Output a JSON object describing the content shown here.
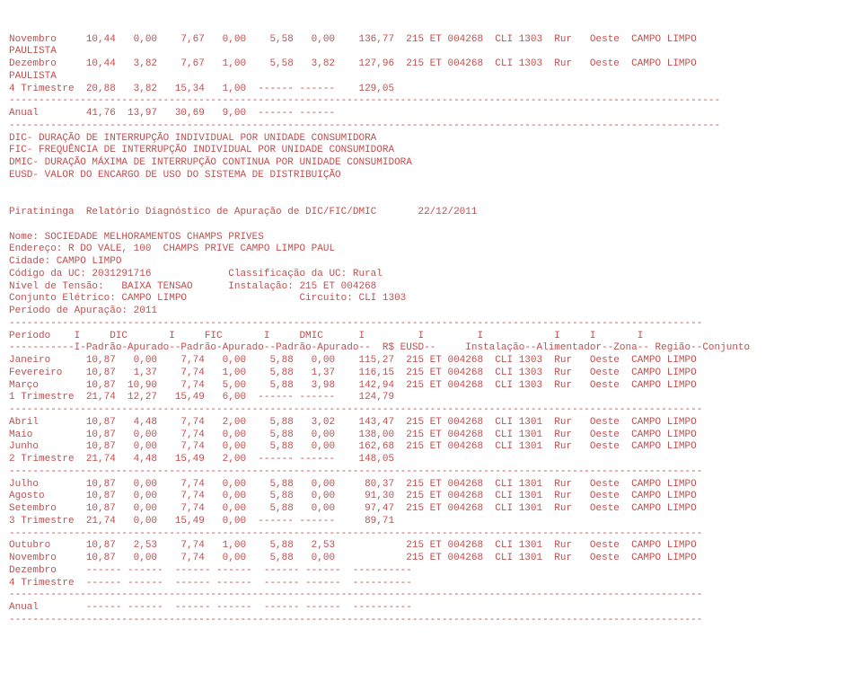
{
  "top_rows": [
    {
      "mes": "Novembro",
      "c1": "10,44",
      "c2": "0,00",
      "c3": "7,67",
      "c4": "0,00",
      "c5": "5,58",
      "c6": "0,00",
      "c7": "136,77",
      "inst": "215 ET 004268",
      "cli": "CLI 1303",
      "zona": "Rur",
      "reg": "Oeste",
      "conj": "CAMPO LIMPO"
    },
    {
      "mes": "Dezembro",
      "c1": "10,44",
      "c2": "3,82",
      "c3": "7,67",
      "c4": "1,00",
      "c5": "5,58",
      "c6": "3,82",
      "c7": "127,96",
      "inst": "215 ET 004268",
      "cli": "CLI 1303",
      "zona": "Rur",
      "reg": "Oeste",
      "conj": "CAMPO LIMPO"
    }
  ],
  "paulista": "PAULISTA",
  "top_trimestre": {
    "label": "4 Trimestre",
    "c1": "20,88",
    "c2": "3,82",
    "c3": "15,34",
    "c4": "1,00",
    "c5": "------",
    "c6": "------",
    "c7": "129,05"
  },
  "anual": {
    "label": "Anual",
    "c1": "41,76",
    "c2": "13,97",
    "c3": "30,69",
    "c4": "9,00",
    "c5": "------",
    "c6": "------"
  },
  "legend": [
    "DIC- DURAÇÃO DE INTERRUPÇÃO INDIVIDUAL POR UNIDADE CONSUMIDORA",
    "FIC- FREQUÊNCIA DE INTERRUPÇÃO INDIVIDUAL POR UNIDADE CONSUMIDORA",
    "DMIC- DURAÇÃO MÁXIMA DE INTERRUPÇÃO CONTINUA POR UNIDADE CONSUMIDORA",
    "EUSD- VALOR DO ENCARGO DE USO DO SISTEMA DE DISTRIBUIÇÃO"
  ],
  "header": {
    "l1": "Piratininga  Relatório Diagnóstico de Apuração de DIC/FIC/DMIC       22/12/2011",
    "nome": "Nome: SOCIEDADE MELHORAMENTOS CHAMPS PRIVES",
    "end": "Endereço: R DO VALE, 100  CHAMPS PRIVE CAMPO LIMPO PAUL",
    "cidade": "Cidade: CAMPO LIMPO",
    "codigo": "Código da UC: 2031291716             Classificação da UC: Rural",
    "nivel": "Nível de Tensão:   BAIXA TENSAO      Instalação: 215 ET 004268",
    "conjunto": "Conjunto Elétrico: CAMPO LIMPO                   Circuito: CLI 1303",
    "periodo": "Período de Apuração: 2011"
  },
  "colhead1": "Período    I     DIC       I     FIC       I     DMIC      I         I         I            I     I       I",
  "colhead2": "-----------I-Padrão-Apurado--Padrão-Apurado--Padrão-Apurado--  R$ EUSD--     Instalação--Alimentador--Zona-- Região--Conjunto",
  "q1": [
    {
      "mes": "Janeiro",
      "c1": "10,87",
      "c2": "0,00",
      "c3": "7,74",
      "c4": "0,00",
      "c5": "5,88",
      "c6": "0,00",
      "c7": "115,27",
      "inst": "215 ET 004268",
      "cli": "CLI 1303",
      "zona": "Rur",
      "reg": "Oeste",
      "conj": "CAMPO LIMPO"
    },
    {
      "mes": "Fevereiro",
      "c1": "10,87",
      "c2": "1,37",
      "c3": "7,74",
      "c4": "1,00",
      "c5": "5,88",
      "c6": "1,37",
      "c7": "116,15",
      "inst": "215 ET 004268",
      "cli": "CLI 1303",
      "zona": "Rur",
      "reg": "Oeste",
      "conj": "CAMPO LIMPO"
    },
    {
      "mes": "Março",
      "c1": "10,87",
      "c2": "10,90",
      "c3": "7,74",
      "c4": "5,00",
      "c5": "5,88",
      "c6": "3,98",
      "c7": "142,94",
      "inst": "215 ET 004268",
      "cli": "CLI 1303",
      "zona": "Rur",
      "reg": "Oeste",
      "conj": "CAMPO LIMPO"
    }
  ],
  "t1": {
    "label": "1 Trimestre",
    "c1": "21,74",
    "c2": "12,27",
    "c3": "15,49",
    "c4": "6,00",
    "c5": "------",
    "c6": "------",
    "c7": "124,79"
  },
  "q2": [
    {
      "mes": "Abril",
      "c1": "10,87",
      "c2": "4,48",
      "c3": "7,74",
      "c4": "2,00",
      "c5": "5,88",
      "c6": "3,02",
      "c7": "143,47",
      "inst": "215 ET 004268",
      "cli": "CLI 1301",
      "zona": "Rur",
      "reg": "Oeste",
      "conj": "CAMPO LIMPO"
    },
    {
      "mes": "Maio",
      "c1": "10,87",
      "c2": "0,00",
      "c3": "7,74",
      "c4": "0,00",
      "c5": "5,88",
      "c6": "0,00",
      "c7": "138,00",
      "inst": "215 ET 004268",
      "cli": "CLI 1301",
      "zona": "Rur",
      "reg": "Oeste",
      "conj": "CAMPO LIMPO"
    },
    {
      "mes": "Junho",
      "c1": "10,87",
      "c2": "0,00",
      "c3": "7,74",
      "c4": "0,00",
      "c5": "5,88",
      "c6": "0,00",
      "c7": "162,68",
      "inst": "215 ET 004268",
      "cli": "CLI 1301",
      "zona": "Rur",
      "reg": "Oeste",
      "conj": "CAMPO LIMPO"
    }
  ],
  "t2": {
    "label": "2 Trimestre",
    "c1": "21,74",
    "c2": "4,48",
    "c3": "15,49",
    "c4": "2,00",
    "c5": "------",
    "c6": "------",
    "c7": "148,05"
  },
  "q3": [
    {
      "mes": "Julho",
      "c1": "10,87",
      "c2": "0,00",
      "c3": "7,74",
      "c4": "0,00",
      "c5": "5,88",
      "c6": "0,00",
      "c7": "80,37",
      "inst": "215 ET 004268",
      "cli": "CLI 1301",
      "zona": "Rur",
      "reg": "Oeste",
      "conj": "CAMPO LIMPO"
    },
    {
      "mes": "Agosto",
      "c1": "10,87",
      "c2": "0,00",
      "c3": "7,74",
      "c4": "0,00",
      "c5": "5,88",
      "c6": "0,00",
      "c7": "91,30",
      "inst": "215 ET 004268",
      "cli": "CLI 1301",
      "zona": "Rur",
      "reg": "Oeste",
      "conj": "CAMPO LIMPO"
    },
    {
      "mes": "Setembro",
      "c1": "10,87",
      "c2": "0,00",
      "c3": "7,74",
      "c4": "0,00",
      "c5": "5,88",
      "c6": "0,00",
      "c7": "97,47",
      "inst": "215 ET 004268",
      "cli": "CLI 1301",
      "zona": "Rur",
      "reg": "Oeste",
      "conj": "CAMPO LIMPO"
    }
  ],
  "t3": {
    "label": "3 Trimestre",
    "c1": "21,74",
    "c2": "0,00",
    "c3": "15,49",
    "c4": "0,00",
    "c5": "------",
    "c6": "------",
    "c7": "89,71"
  },
  "q4": [
    {
      "mes": "Outubro",
      "c1": "10,87",
      "c2": "2,53",
      "c3": "7,74",
      "c4": "1,00",
      "c5": "5,88",
      "c6": "2,53",
      "c7": "",
      "inst": "215 ET 004268",
      "cli": "CLI 1301",
      "zona": "Rur",
      "reg": "Oeste",
      "conj": "CAMPO LIMPO"
    },
    {
      "mes": "Novembro",
      "c1": "10,87",
      "c2": "0,00",
      "c3": "7,74",
      "c4": "0,00",
      "c5": "5,88",
      "c6": "0,00",
      "c7": "",
      "inst": "215 ET 004268",
      "cli": "CLI 1301",
      "zona": "Rur",
      "reg": "Oeste",
      "conj": "CAMPO LIMPO"
    }
  ],
  "dez": "Dezembro     ------ ------  ------ ------  ------ ------  ----------",
  "t4": "4 Trimestre  ------ ------  ------ ------  ------ ------  ----------",
  "anual2": "Anual        ------ ------  ------ ------  ------ ------  ----------",
  "dash_long": "------------------------------------------------------------------------------------------------------------------------",
  "dash_mid": "---------------------------------------------------------------------------------------------------------------------"
}
